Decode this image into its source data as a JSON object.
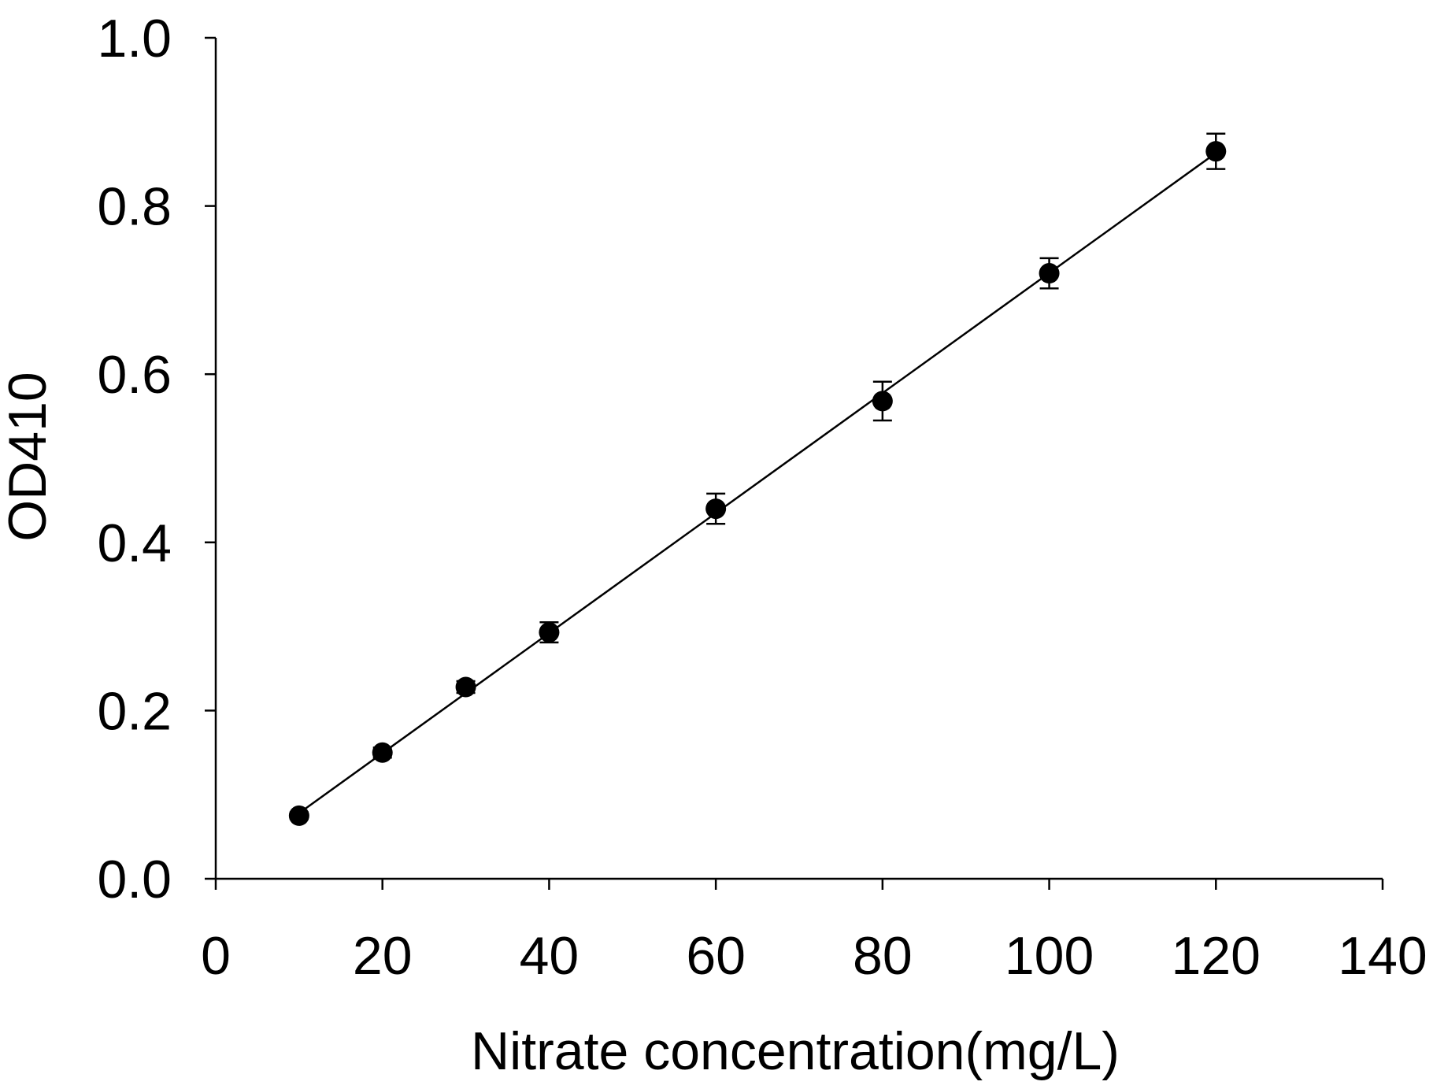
{
  "chart_data": {
    "type": "scatter",
    "title": "",
    "xlabel": "Nitrate concentration(mg/L)",
    "ylabel": "OD410",
    "xlim": [
      0,
      140
    ],
    "ylim": [
      0.0,
      1.0
    ],
    "x_ticks": [
      "0",
      "20",
      "40",
      "60",
      "80",
      "100",
      "120",
      "140"
    ],
    "y_ticks": [
      "0.0",
      "0.2",
      "0.4",
      "0.6",
      "0.8",
      "1.0"
    ],
    "grid": false,
    "legend": "none",
    "series": [
      {
        "marker": "filled-circle",
        "color": "#000000",
        "points": [
          {
            "x": 10,
            "y": 0.075,
            "err": 0.004
          },
          {
            "x": 20,
            "y": 0.15,
            "err": 0.006
          },
          {
            "x": 30,
            "y": 0.228,
            "err": 0.007
          },
          {
            "x": 40,
            "y": 0.293,
            "err": 0.012
          },
          {
            "x": 60,
            "y": 0.44,
            "err": 0.018
          },
          {
            "x": 80,
            "y": 0.568,
            "err": 0.023
          },
          {
            "x": 100,
            "y": 0.72,
            "err": 0.018
          },
          {
            "x": 120,
            "y": 0.865,
            "err": 0.021
          }
        ]
      }
    ],
    "trendline": {
      "type": "linear",
      "color": "#000000",
      "x_range": [
        10,
        120
      ],
      "y_range": [
        0.078,
        0.863
      ]
    }
  }
}
